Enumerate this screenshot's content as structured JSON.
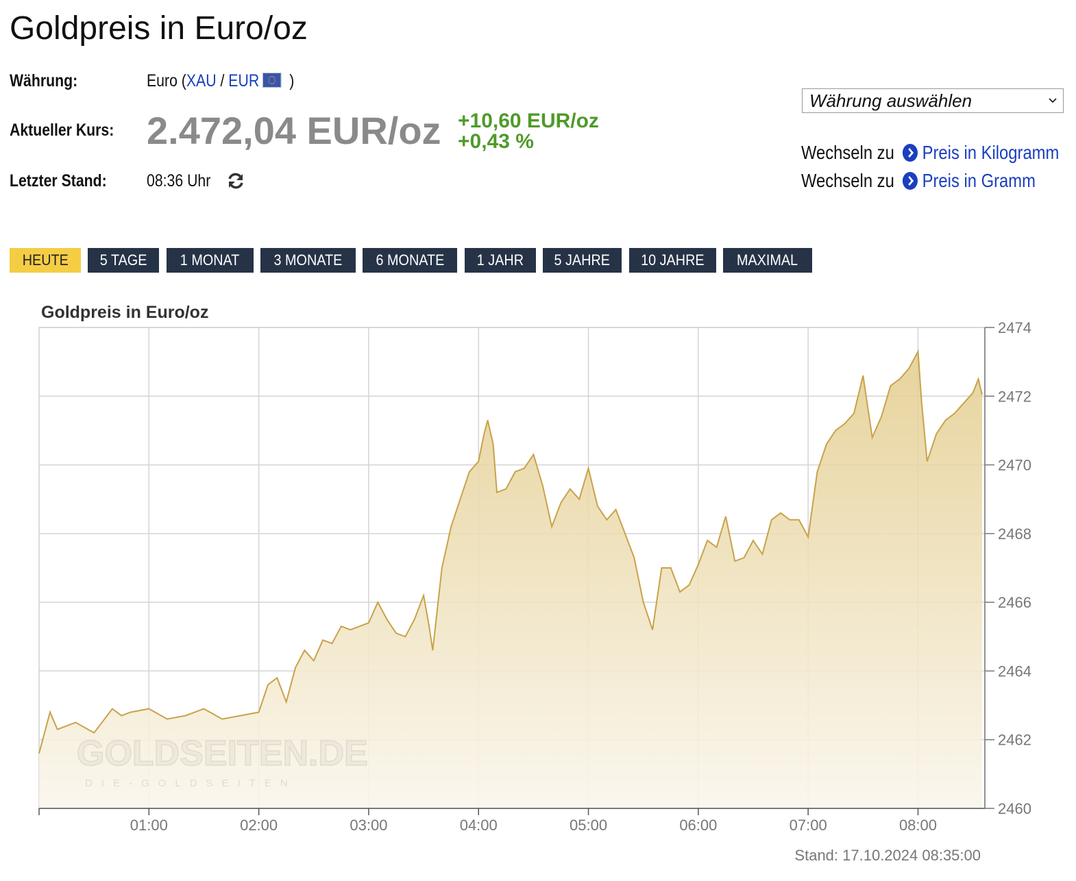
{
  "title": "Goldpreis in Euro/oz",
  "info": {
    "currency_label": "Währung:",
    "currency_name": "Euro",
    "paren_open": "(",
    "xau": "XAU",
    "slash": "/",
    "eur": "EUR",
    "paren_close": ")",
    "price_label": "Aktueller Kurs:",
    "price": "2.472,04 EUR/oz",
    "change_abs": "+10,60 EUR/oz",
    "change_pct": "+0,43 %",
    "last_label": "Letzter Stand:",
    "last_time": "08:36 Uhr",
    "price_color": "#8a8a8a",
    "change_color": "#4f9a2a"
  },
  "currency_select": {
    "value": "Währung auswählen"
  },
  "switch_links": [
    {
      "prefix": "Wechseln zu",
      "label": "Preis in Kilogramm"
    },
    {
      "prefix": "Wechseln zu",
      "label": "Preis in Gramm"
    }
  ],
  "tabs": [
    {
      "label": "HEUTE",
      "active": true
    },
    {
      "label": "5 TAGE",
      "active": false
    },
    {
      "label": "1 MONAT",
      "active": false
    },
    {
      "label": "3 MONATE",
      "active": false
    },
    {
      "label": "6 MONATE",
      "active": false
    },
    {
      "label": "1 JAHR",
      "active": false
    },
    {
      "label": "5 JAHRE",
      "active": false
    },
    {
      "label": "10 JAHRE",
      "active": false
    },
    {
      "label": "MAXIMAL",
      "active": false
    }
  ],
  "chart_data": {
    "type": "area",
    "title": "Goldpreis in Euro/oz",
    "xlabel": "",
    "ylabel": "",
    "x_range": [
      "00:00",
      "08:35"
    ],
    "x_ticks": [
      "01:00",
      "02:00",
      "03:00",
      "04:00",
      "05:00",
      "06:00",
      "07:00",
      "08:00"
    ],
    "y_ticks": [
      2460,
      2462,
      2464,
      2466,
      2468,
      2470,
      2472,
      2474
    ],
    "ylim": [
      2460,
      2474
    ],
    "y_axis_side": "right",
    "grid": true,
    "line_color": "#c9a24a",
    "fill_color_top": "#e3cc8c",
    "fill_color_bottom": "#faf6ec",
    "watermark": "GOLDSEITEN.DE",
    "watermark_sub": "DIE-GOLDSEITEN",
    "footer": "Stand: 17.10.2024 08:35:00",
    "series": [
      {
        "x": [
          "00:00",
          "00:06",
          "00:10",
          "00:20",
          "00:30",
          "00:40",
          "00:45",
          "00:50",
          "01:00",
          "01:10",
          "01:20",
          "01:30",
          "01:40",
          "01:50",
          "02:00",
          "02:05",
          "02:10",
          "02:15",
          "02:20",
          "02:25",
          "02:30",
          "02:35",
          "02:40",
          "02:45",
          "02:50",
          "03:00",
          "03:05",
          "03:10",
          "03:15",
          "03:20",
          "03:25",
          "03:30",
          "03:33",
          "03:35",
          "03:40",
          "03:45",
          "03:50",
          "03:55",
          "04:00",
          "04:03",
          "04:05",
          "04:08",
          "04:10",
          "04:15",
          "04:20",
          "04:25",
          "04:30",
          "04:35",
          "04:40",
          "04:45",
          "04:50",
          "04:55",
          "05:00",
          "05:05",
          "05:10",
          "05:15",
          "05:20",
          "05:25",
          "05:30",
          "05:35",
          "05:40",
          "05:45",
          "05:50",
          "05:55",
          "06:00",
          "06:05",
          "06:10",
          "06:15",
          "06:20",
          "06:25",
          "06:30",
          "06:35",
          "06:40",
          "06:45",
          "06:50",
          "06:55",
          "07:00",
          "07:05",
          "07:10",
          "07:15",
          "07:20",
          "07:25",
          "07:30",
          "07:35",
          "07:40",
          "07:45",
          "07:50",
          "07:55",
          "08:00",
          "08:02",
          "08:05",
          "08:10",
          "08:15",
          "08:20",
          "08:25",
          "08:30",
          "08:33",
          "08:35"
        ],
        "values": [
          2461.6,
          2462.8,
          2462.3,
          2462.5,
          2462.2,
          2462.9,
          2462.7,
          2462.8,
          2462.9,
          2462.6,
          2462.7,
          2462.9,
          2462.6,
          2462.7,
          2462.8,
          2463.6,
          2463.8,
          2463.1,
          2464.1,
          2464.6,
          2464.3,
          2464.9,
          2464.8,
          2465.3,
          2465.2,
          2465.4,
          2466.0,
          2465.5,
          2465.1,
          2465.0,
          2465.5,
          2466.2,
          2465.3,
          2464.6,
          2467.0,
          2468.2,
          2469.0,
          2469.8,
          2470.1,
          2470.9,
          2471.3,
          2470.6,
          2469.2,
          2469.3,
          2469.8,
          2469.9,
          2470.3,
          2469.4,
          2468.2,
          2468.9,
          2469.3,
          2469.0,
          2469.9,
          2468.8,
          2468.4,
          2468.7,
          2468.0,
          2467.3,
          2466.0,
          2465.2,
          2467.0,
          2467.0,
          2466.3,
          2466.5,
          2467.1,
          2467.8,
          2467.6,
          2468.5,
          2467.2,
          2467.3,
          2467.8,
          2467.4,
          2468.4,
          2468.6,
          2468.4,
          2468.4,
          2467.9,
          2469.8,
          2470.6,
          2471.0,
          2471.2,
          2471.5,
          2472.6,
          2470.8,
          2471.4,
          2472.3,
          2472.5,
          2472.8,
          2473.3,
          2471.8,
          2470.1,
          2470.9,
          2471.3,
          2471.5,
          2471.8,
          2472.1,
          2472.5,
          2472.04
        ]
      }
    ]
  }
}
